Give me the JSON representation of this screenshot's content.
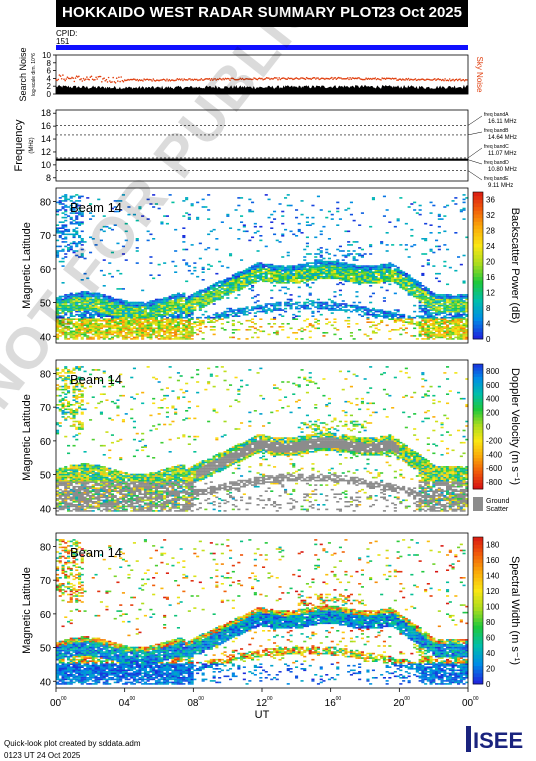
{
  "header": {
    "title": "HOKKAIDO WEST RADAR SUMMARY PLOT",
    "date": "23 Oct 2025"
  },
  "cpid": {
    "label": "CPID:",
    "value": "151"
  },
  "footer": {
    "credit": "Quick-look plot created by sddata.adm",
    "timestamp": "0123 UT 24 Oct 2025"
  },
  "watermark": "NOT FOR PUBLICATION",
  "logo": {
    "text": "ISEE"
  },
  "colors": {
    "cpid_bar": "#1010ff",
    "noise_line": "#e04010",
    "ground_scatter": "#8c8c8c"
  },
  "chart_data": [
    {
      "type": "line",
      "panel": "search-noise",
      "ylabel": "Search Noise",
      "ylabel_units": "log-scale dim. 10^6",
      "ylim": [
        0,
        10
      ],
      "yticks": [
        0,
        2,
        4,
        6,
        8,
        10
      ],
      "legend": "Sky Noise",
      "x": [
        0,
        2,
        4,
        6,
        8,
        10,
        12,
        14,
        16,
        18,
        20,
        22,
        24
      ],
      "sky_noise": [
        4.2,
        3.8,
        3.6,
        3.6,
        3.7,
        3.8,
        3.9,
        3.9,
        4.0,
        3.9,
        3.8,
        3.7,
        3.6
      ],
      "search_noise": [
        1.8,
        1.6,
        1.5,
        1.5,
        1.6,
        1.7,
        1.6,
        1.7,
        1.8,
        1.8,
        1.7,
        1.6,
        1.8
      ]
    },
    {
      "type": "line",
      "panel": "frequency",
      "ylabel": "Frequency",
      "ylabel_units": "(MHz)",
      "ylim": [
        7.5,
        18.5
      ],
      "yticks": [
        8,
        10,
        12,
        14,
        16,
        18
      ],
      "bands": [
        {
          "name": "freq bandA",
          "label": "16.11 MHz",
          "value": 16.11
        },
        {
          "name": "freq bandB",
          "label": "14.64 MHz",
          "value": 14.64
        },
        {
          "name": "freq bandC",
          "label": "11.07 MHz",
          "value": 11.07
        },
        {
          "name": "freq bandD",
          "label": "10.80 MHz",
          "value": 10.8
        },
        {
          "name": "freq bandE",
          "label": "9.11 MHz",
          "value": 9.11
        }
      ],
      "operating_frequency": 10.8
    },
    {
      "type": "heatmap",
      "panel": "power",
      "annotation": "Beam 14",
      "ylabel": "Magnetic Latitude",
      "ylim": [
        38,
        84
      ],
      "yticks": [
        40,
        50,
        60,
        70,
        80
      ],
      "colorbar_label": "Backscatter Power (dB)",
      "colorbar_ticks": [
        0,
        4,
        8,
        12,
        16,
        20,
        24,
        28,
        32,
        36
      ],
      "colorbar_range": [
        0,
        38
      ]
    },
    {
      "type": "heatmap",
      "panel": "velocity",
      "annotation": "Beam 14",
      "ylabel": "Magnetic Latitude",
      "ylim": [
        38,
        84
      ],
      "yticks": [
        40,
        50,
        60,
        70,
        80
      ],
      "colorbar_label": "Doppler Velocity (m s⁻¹)",
      "colorbar_ticks": [
        800,
        600,
        400,
        200,
        0,
        -200,
        -400,
        -600,
        -800
      ],
      "colorbar_range": [
        -900,
        900
      ],
      "ground_scatter_label": [
        "Ground",
        "Scatter"
      ]
    },
    {
      "type": "heatmap",
      "panel": "width",
      "annotation": "Beam 14",
      "ylabel": "Magnetic Latitude",
      "xlabel": "UT",
      "ylim": [
        38,
        84
      ],
      "yticks": [
        40,
        50,
        60,
        70,
        80
      ],
      "xticks": [
        "00",
        "04",
        "08",
        "12",
        "16",
        "20",
        "00"
      ],
      "xtick_values": [
        0,
        4,
        8,
        12,
        16,
        20,
        24
      ],
      "colorbar_label": "Spectral Width (m s⁻¹)",
      "colorbar_ticks": [
        0,
        20,
        40,
        60,
        80,
        100,
        120,
        140,
        160,
        180
      ],
      "colorbar_range": [
        0,
        190
      ]
    }
  ]
}
